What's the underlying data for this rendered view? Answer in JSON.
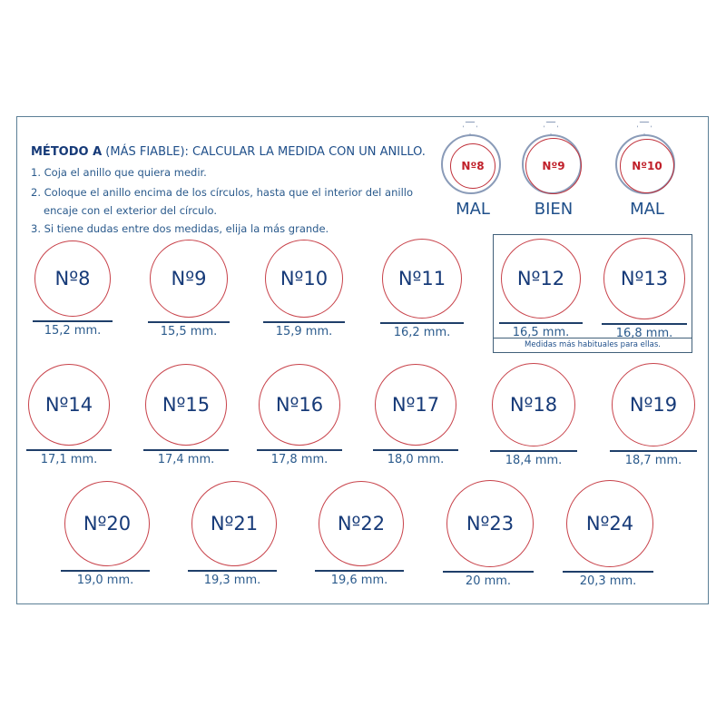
{
  "header": {
    "title_bold": "MÉTODO A",
    "title_rest": " (MÁS FIABLE): CALCULAR LA MEDIDA CON UN ANILLO.",
    "steps": [
      "1. Coja el anillo que quiera medir.",
      "2. Coloque el anillo encima de los círculos, hasta que el interior del anillo",
      "encaje con el exterior del círculo.",
      "3. Si tiene dudas entre dos medidas, elija la más grande."
    ]
  },
  "examples": [
    {
      "label": "Nº8",
      "verdict": "MAL",
      "fit": "small"
    },
    {
      "label": "Nº9",
      "verdict": "BIEN",
      "fit": "exact"
    },
    {
      "label": "Nº10",
      "verdict": "MAL",
      "fit": "large"
    }
  ],
  "highlight_note": "Medidas más habituales para ellas.",
  "colors": {
    "text": "#163a78",
    "circle": "#c8424a",
    "frame": "#5b7f96"
  },
  "sizes": [
    {
      "label": "Nº8",
      "mm": "15,2 mm.",
      "diameter_mm": 15.2
    },
    {
      "label": "Nº9",
      "mm": "15,5 mm.",
      "diameter_mm": 15.5
    },
    {
      "label": "Nº10",
      "mm": "15,9 mm.",
      "diameter_mm": 15.9
    },
    {
      "label": "Nº11",
      "mm": "16,2 mm.",
      "diameter_mm": 16.2
    },
    {
      "label": "Nº12",
      "mm": "16,5 mm.",
      "diameter_mm": 16.5
    },
    {
      "label": "Nº13",
      "mm": "16,8 mm.",
      "diameter_mm": 16.8
    },
    {
      "label": "Nº14",
      "mm": "17,1 mm.",
      "diameter_mm": 17.1
    },
    {
      "label": "Nº15",
      "mm": "17,4 mm.",
      "diameter_mm": 17.4
    },
    {
      "label": "Nº16",
      "mm": "17,8 mm.",
      "diameter_mm": 17.8
    },
    {
      "label": "Nº17",
      "mm": "18,0 mm.",
      "diameter_mm": 18.0
    },
    {
      "label": "Nº18",
      "mm": "18,4 mm.",
      "diameter_mm": 18.4
    },
    {
      "label": "Nº19",
      "mm": "18,7 mm.",
      "diameter_mm": 18.7
    },
    {
      "label": "Nº20",
      "mm": "19,0 mm.",
      "diameter_mm": 19.0
    },
    {
      "label": "Nº21",
      "mm": "19,3 mm.",
      "diameter_mm": 19.3
    },
    {
      "label": "Nº22",
      "mm": "19,6 mm.",
      "diameter_mm": 19.6
    },
    {
      "label": "Nº23",
      "mm": "20 mm.",
      "diameter_mm": 20
    },
    {
      "label": "Nº24",
      "mm": "20,3 mm.",
      "diameter_mm": 20.3
    }
  ]
}
